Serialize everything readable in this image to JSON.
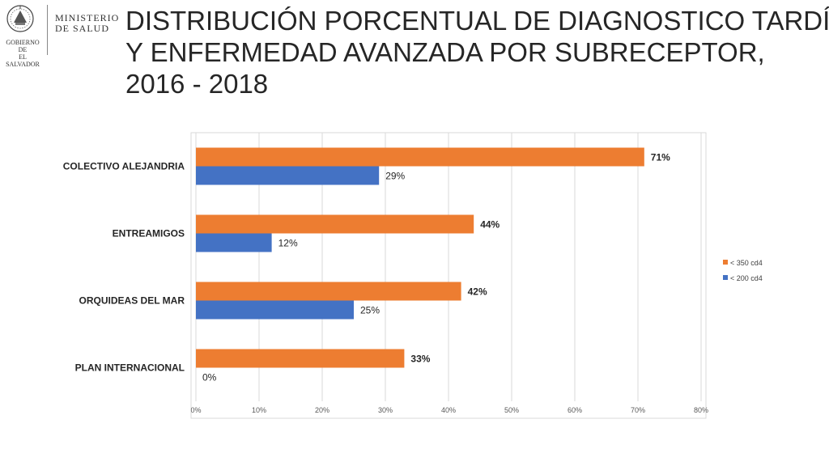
{
  "header": {
    "logo_line1": "MINISTERIO",
    "logo_line2": "DE SALUD",
    "logo_sub1": "GOBIERNO DE",
    "logo_sub2": "EL SALVADOR",
    "title_line1": "DISTRIBUCIÓN PORCENTUAL DE DIAGNOSTICO TARDÍO",
    "title_line2": "Y ENFERMEDAD AVANZADA POR SUBRECEPTOR,",
    "title_line3": "2016 - 2018"
  },
  "chart_data": {
    "type": "bar",
    "orientation": "horizontal",
    "title": "",
    "xlabel": "",
    "ylabel": "",
    "xlim": [
      0,
      80
    ],
    "x_ticks": [
      "0%",
      "10%",
      "20%",
      "30%",
      "40%",
      "50%",
      "60%",
      "70%",
      "80%"
    ],
    "categories": [
      "COLECTIVO ALEJANDRIA",
      "ENTREAMIGOS",
      "ORQUIDEAS DEL MAR",
      "PLAN INTERNACIONAL"
    ],
    "series": [
      {
        "name": "< 350 cd4",
        "color": "#ED7D31",
        "values": [
          71,
          44,
          42,
          33
        ],
        "labels": [
          "71%",
          "44%",
          "42%",
          "33%"
        ],
        "label_bold": true
      },
      {
        "name": "< 200 cd4",
        "color": "#4472C4",
        "values": [
          29,
          12,
          25,
          0
        ],
        "labels": [
          "29%",
          "12%",
          "25%",
          "0%"
        ],
        "label_bold": false
      }
    ],
    "grid": true,
    "legend": "right"
  }
}
